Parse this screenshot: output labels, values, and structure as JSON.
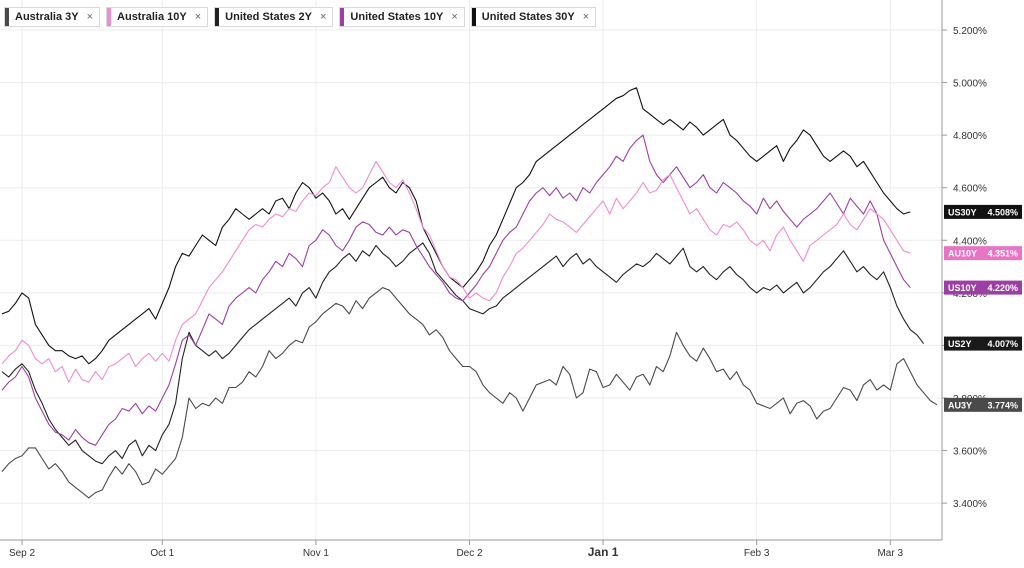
{
  "legend": [
    {
      "label": "Australia 3Y",
      "color": "#4a4a4a",
      "close": "×"
    },
    {
      "label": "Australia 10Y",
      "color": "#f08ccf",
      "close": "×"
    },
    {
      "label": "United States 2Y",
      "color": "#222222",
      "close": "×"
    },
    {
      "label": "United States 10Y",
      "color": "#9b3fa3",
      "close": "×"
    },
    {
      "label": "United States 30Y",
      "color": "#111111",
      "close": "×"
    }
  ],
  "chart_data": {
    "type": "line",
    "title": "",
    "xlabel": "",
    "ylabel": "",
    "x_tick_labels": [
      "Sep 2",
      "Oct 1",
      "Nov 1",
      "Dec 2",
      "Jan 1",
      "Feb 3",
      "Mar 3"
    ],
    "x_ticks_index": [
      3,
      24,
      47,
      70,
      90,
      113,
      133
    ],
    "y_tick_labels": [
      "3.400%",
      "3.600%",
      "3.800%",
      "4.000%",
      "4.200%",
      "4.400%",
      "4.600%",
      "4.800%",
      "5.000%",
      "5.200%"
    ],
    "ylim": [
      3.33,
      5.3
    ],
    "grid": true,
    "legend_position": "top-left",
    "series": [
      {
        "name": "Australia 3Y",
        "badge": "AU3Y",
        "last_label": "3.774%",
        "color": "#4a4a4a",
        "badge_bg": "#4a4a4a",
        "values": [
          3.52,
          3.55,
          3.57,
          3.58,
          3.61,
          3.61,
          3.57,
          3.53,
          3.55,
          3.52,
          3.48,
          3.46,
          3.44,
          3.42,
          3.44,
          3.45,
          3.5,
          3.54,
          3.51,
          3.55,
          3.52,
          3.47,
          3.48,
          3.53,
          3.51,
          3.54,
          3.57,
          3.65,
          3.8,
          3.76,
          3.78,
          3.77,
          3.8,
          3.78,
          3.84,
          3.84,
          3.86,
          3.9,
          3.88,
          3.92,
          3.98,
          3.95,
          3.97,
          4.0,
          4.02,
          4.01,
          4.07,
          4.09,
          4.12,
          4.14,
          4.16,
          4.15,
          4.12,
          4.17,
          4.14,
          4.18,
          4.2,
          4.22,
          4.21,
          4.18,
          4.15,
          4.12,
          4.1,
          4.08,
          4.04,
          4.06,
          4.03,
          3.98,
          3.95,
          3.92,
          3.92,
          3.9,
          3.85,
          3.82,
          3.8,
          3.78,
          3.82,
          3.8,
          3.75,
          3.8,
          3.85,
          3.86,
          3.87,
          3.85,
          3.92,
          3.89,
          3.8,
          3.82,
          3.91,
          3.9,
          3.84,
          3.85,
          3.89,
          3.86,
          3.83,
          3.88,
          3.89,
          3.85,
          3.92,
          3.9,
          3.96,
          4.05,
          4.0,
          3.96,
          3.94,
          3.99,
          3.95,
          3.9,
          3.91,
          3.87,
          3.9,
          3.85,
          3.83,
          3.78,
          3.77,
          3.76,
          3.78,
          3.8,
          3.74,
          3.78,
          3.79,
          3.77,
          3.72,
          3.75,
          3.76,
          3.8,
          3.84,
          3.83,
          3.79,
          3.85,
          3.87,
          3.83,
          3.85,
          3.83,
          3.93,
          3.95,
          3.9,
          3.85,
          3.82,
          3.79,
          3.774
        ]
      },
      {
        "name": "Australia 10Y",
        "badge": "AU10Y",
        "last_label": "4.351%",
        "color": "#f08ccf",
        "badge_bg": "#e874c6",
        "values": [
          3.93,
          3.96,
          3.98,
          4.02,
          4.0,
          3.95,
          3.93,
          3.95,
          3.9,
          3.92,
          3.86,
          3.91,
          3.87,
          3.86,
          3.9,
          3.87,
          3.92,
          3.93,
          3.95,
          3.97,
          3.92,
          3.95,
          3.97,
          3.94,
          3.97,
          3.94,
          4.02,
          4.08,
          4.1,
          4.12,
          4.17,
          4.22,
          4.25,
          4.28,
          4.32,
          4.36,
          4.4,
          4.44,
          4.46,
          4.45,
          4.48,
          4.5,
          4.49,
          4.52,
          4.51,
          4.55,
          4.58,
          4.57,
          4.6,
          4.62,
          4.68,
          4.64,
          4.6,
          4.58,
          4.6,
          4.65,
          4.7,
          4.66,
          4.62,
          4.6,
          4.63,
          4.58,
          4.52,
          4.45,
          4.42,
          4.36,
          4.3,
          4.26,
          4.25,
          4.22,
          4.18,
          4.2,
          4.18,
          4.17,
          4.2,
          4.26,
          4.3,
          4.35,
          4.37,
          4.4,
          4.43,
          4.46,
          4.5,
          4.48,
          4.47,
          4.45,
          4.43,
          4.46,
          4.49,
          4.52,
          4.55,
          4.5,
          4.56,
          4.52,
          4.55,
          4.58,
          4.62,
          4.58,
          4.59,
          4.63,
          4.65,
          4.6,
          4.55,
          4.5,
          4.52,
          4.48,
          4.44,
          4.42,
          4.46,
          4.45,
          4.47,
          4.44,
          4.4,
          4.38,
          4.4,
          4.36,
          4.42,
          4.45,
          4.4,
          4.36,
          4.32,
          4.38,
          4.4,
          4.42,
          4.44,
          4.46,
          4.5,
          4.46,
          4.44,
          4.48,
          4.52,
          4.5,
          4.48,
          4.44,
          4.4,
          4.36,
          4.351
        ]
      },
      {
        "name": "United States 2Y",
        "badge": "US2Y",
        "last_label": "4.007%",
        "color": "#222222",
        "badge_bg": "#1a1a1a",
        "values": [
          3.9,
          3.88,
          3.91,
          3.93,
          3.9,
          3.83,
          3.78,
          3.72,
          3.68,
          3.65,
          3.62,
          3.64,
          3.6,
          3.58,
          3.56,
          3.55,
          3.58,
          3.6,
          3.57,
          3.62,
          3.64,
          3.58,
          3.62,
          3.6,
          3.66,
          3.7,
          3.78,
          3.95,
          4.05,
          4.0,
          3.98,
          3.96,
          3.98,
          3.95,
          3.97,
          4.0,
          4.03,
          4.06,
          4.08,
          4.1,
          4.12,
          4.14,
          4.16,
          4.18,
          4.15,
          4.2,
          4.22,
          4.18,
          4.24,
          4.28,
          4.3,
          4.33,
          4.35,
          4.32,
          4.36,
          4.34,
          4.38,
          4.35,
          4.33,
          4.3,
          4.32,
          4.35,
          4.37,
          4.39,
          4.35,
          4.28,
          4.25,
          4.22,
          4.19,
          4.17,
          4.14,
          4.13,
          4.12,
          4.14,
          4.15,
          4.18,
          4.2,
          4.22,
          4.24,
          4.26,
          4.28,
          4.3,
          4.32,
          4.34,
          4.3,
          4.33,
          4.35,
          4.31,
          4.33,
          4.3,
          4.28,
          4.26,
          4.24,
          4.27,
          4.29,
          4.31,
          4.3,
          4.32,
          4.35,
          4.33,
          4.31,
          4.34,
          4.37,
          4.3,
          4.28,
          4.3,
          4.27,
          4.25,
          4.28,
          4.3,
          4.27,
          4.25,
          4.22,
          4.2,
          4.22,
          4.21,
          4.23,
          4.2,
          4.22,
          4.24,
          4.2,
          4.22,
          4.25,
          4.28,
          4.3,
          4.33,
          4.36,
          4.32,
          4.28,
          4.3,
          4.27,
          4.25,
          4.28,
          4.22,
          4.15,
          4.1,
          4.06,
          4.04,
          4.007
        ]
      },
      {
        "name": "United States 10Y",
        "badge": "US10Y",
        "last_label": "4.220%",
        "color": "#9b3fa3",
        "badge_bg": "#9b3fa3",
        "values": [
          3.83,
          3.86,
          3.88,
          3.92,
          3.88,
          3.8,
          3.75,
          3.7,
          3.67,
          3.66,
          3.64,
          3.68,
          3.65,
          3.63,
          3.62,
          3.66,
          3.7,
          3.72,
          3.76,
          3.75,
          3.78,
          3.74,
          3.77,
          3.75,
          3.8,
          3.85,
          3.93,
          4.02,
          4.04,
          4.0,
          4.06,
          4.12,
          4.1,
          4.08,
          4.15,
          4.18,
          4.2,
          4.22,
          4.2,
          4.25,
          4.28,
          4.32,
          4.3,
          4.35,
          4.33,
          4.3,
          4.38,
          4.4,
          4.44,
          4.42,
          4.38,
          4.36,
          4.4,
          4.45,
          4.47,
          4.46,
          4.43,
          4.42,
          4.45,
          4.42,
          4.44,
          4.43,
          4.38,
          4.34,
          4.3,
          4.27,
          4.24,
          4.2,
          4.18,
          4.17,
          4.2,
          4.23,
          4.27,
          4.3,
          4.35,
          4.4,
          4.43,
          4.45,
          4.5,
          4.55,
          4.58,
          4.6,
          4.57,
          4.6,
          4.56,
          4.58,
          4.55,
          4.6,
          4.58,
          4.62,
          4.65,
          4.68,
          4.72,
          4.7,
          4.75,
          4.78,
          4.8,
          4.7,
          4.65,
          4.62,
          4.65,
          4.68,
          4.64,
          4.6,
          4.62,
          4.65,
          4.6,
          4.58,
          4.62,
          4.6,
          4.58,
          4.55,
          4.53,
          4.5,
          4.56,
          4.52,
          4.55,
          4.51,
          4.48,
          4.45,
          4.48,
          4.5,
          4.52,
          4.55,
          4.58,
          4.54,
          4.5,
          4.56,
          4.53,
          4.5,
          4.55,
          4.5,
          4.4,
          4.35,
          4.3,
          4.25,
          4.22
        ]
      },
      {
        "name": "United States 30Y",
        "badge": "US30Y",
        "last_label": "4.508%",
        "color": "#111111",
        "badge_bg": "#111111",
        "values": [
          4.12,
          4.13,
          4.16,
          4.2,
          4.18,
          4.08,
          4.04,
          4.0,
          3.98,
          3.98,
          3.96,
          3.95,
          3.96,
          3.93,
          3.95,
          3.98,
          4.02,
          4.04,
          4.06,
          4.08,
          4.1,
          4.12,
          4.14,
          4.1,
          4.16,
          4.22,
          4.3,
          4.35,
          4.34,
          4.38,
          4.42,
          4.4,
          4.38,
          4.45,
          4.48,
          4.52,
          4.5,
          4.48,
          4.5,
          4.52,
          4.5,
          4.55,
          4.56,
          4.52,
          4.58,
          4.62,
          4.6,
          4.56,
          4.58,
          4.55,
          4.5,
          4.52,
          4.48,
          4.52,
          4.56,
          4.6,
          4.62,
          4.64,
          4.6,
          4.58,
          4.62,
          4.6,
          4.55,
          4.45,
          4.4,
          4.35,
          4.3,
          4.26,
          4.24,
          4.22,
          4.25,
          4.28,
          4.32,
          4.38,
          4.42,
          4.48,
          4.54,
          4.6,
          4.62,
          4.65,
          4.7,
          4.72,
          4.74,
          4.76,
          4.78,
          4.8,
          4.82,
          4.84,
          4.86,
          4.88,
          4.9,
          4.92,
          4.94,
          4.95,
          4.97,
          4.98,
          4.9,
          4.88,
          4.86,
          4.84,
          4.86,
          4.84,
          4.82,
          4.85,
          4.83,
          4.8,
          4.82,
          4.84,
          4.86,
          4.8,
          4.78,
          4.75,
          4.72,
          4.7,
          4.72,
          4.74,
          4.76,
          4.7,
          4.75,
          4.78,
          4.82,
          4.8,
          4.76,
          4.72,
          4.7,
          4.72,
          4.74,
          4.72,
          4.68,
          4.7,
          4.66,
          4.62,
          4.58,
          4.55,
          4.52,
          4.5,
          4.508
        ]
      }
    ]
  }
}
